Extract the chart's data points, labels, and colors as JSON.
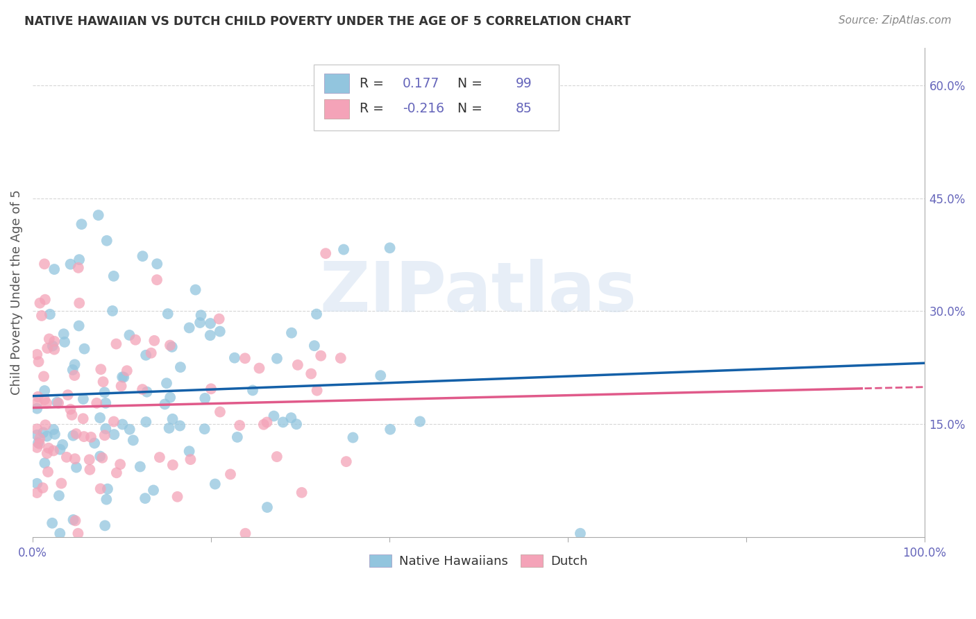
{
  "title": "NATIVE HAWAIIAN VS DUTCH CHILD POVERTY UNDER THE AGE OF 5 CORRELATION CHART",
  "source": "Source: ZipAtlas.com",
  "ylabel": "Child Poverty Under the Age of 5",
  "xlim": [
    0,
    1.0
  ],
  "ylim": [
    0,
    0.65
  ],
  "xtick_positions": [
    0.0,
    0.2,
    0.4,
    0.6,
    0.8,
    1.0
  ],
  "xtick_labels": [
    "0.0%",
    "",
    "",
    "",
    "",
    "100.0%"
  ],
  "ytick_labels": [
    "15.0%",
    "30.0%",
    "45.0%",
    "60.0%"
  ],
  "ytick_positions": [
    0.15,
    0.3,
    0.45,
    0.6
  ],
  "R_hawaiian": 0.177,
  "N_hawaiian": 99,
  "R_dutch": -0.216,
  "N_dutch": 85,
  "color_hawaiian": "#92c5de",
  "color_dutch": "#f4a3b8",
  "line_color_hawaiian": "#1460a8",
  "line_color_dutch": "#e05a8a",
  "background_color": "#ffffff",
  "grid_color": "#cccccc",
  "title_color": "#333333",
  "tick_color": "#6666bb",
  "ylabel_color": "#555555",
  "watermark": "ZIPatlas",
  "seed": 12345
}
